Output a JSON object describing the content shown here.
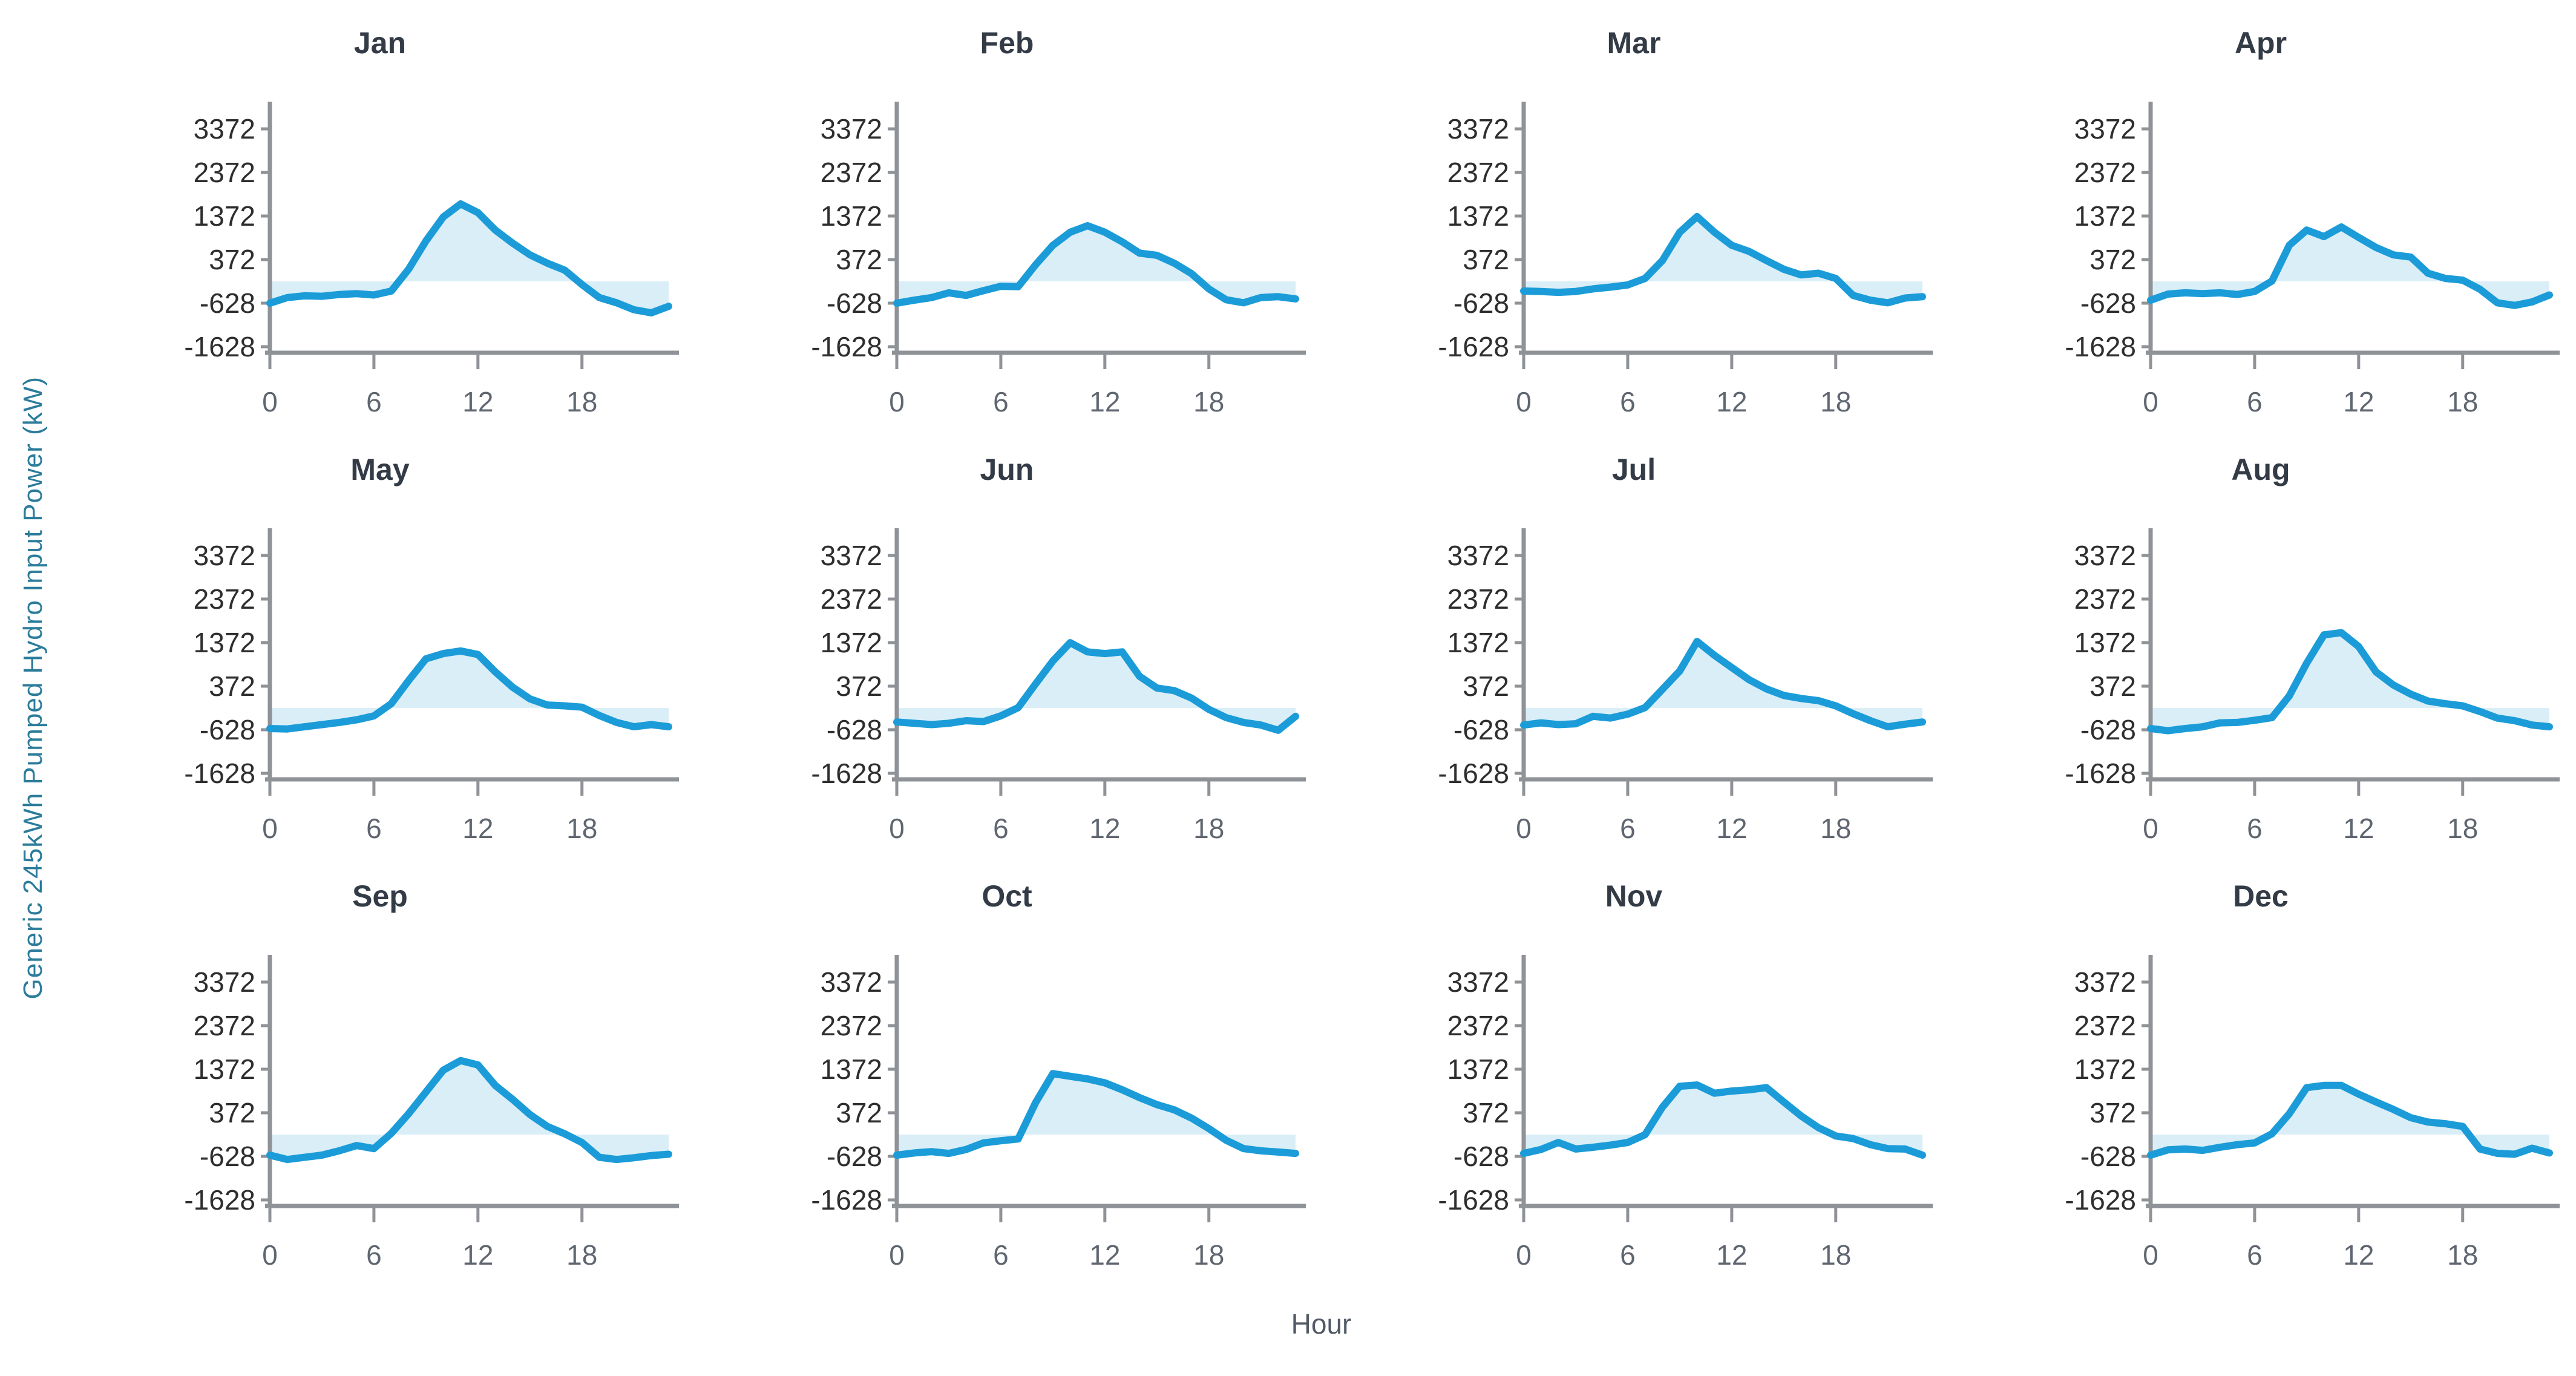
{
  "figure": {
    "ylabel": "Generic 245kWh Pumped Hydro Input Power (kW)",
    "xlabel": "Hour"
  },
  "colors": {
    "line": "#1b9cd8",
    "area_fill": "#daeef8",
    "axis": "#8f9397",
    "y_tick_text": "#2e2e2e",
    "x_tick_text": "#5f6670",
    "title_text": "#333b46",
    "ylabel_text": "#2b7c9b",
    "xlabel_text": "#525a66"
  },
  "chart_data": {
    "type": "line",
    "layout": "small-multiples-3x4",
    "title": "",
    "xlabel": "Hour",
    "ylabel": "Generic 245kWh Pumped Hydro Input Power (kW)",
    "x": [
      0,
      1,
      2,
      3,
      4,
      5,
      6,
      7,
      8,
      9,
      10,
      11,
      12,
      13,
      14,
      15,
      16,
      17,
      18,
      19,
      20,
      21,
      22,
      23
    ],
    "x_ticks": [
      0,
      6,
      12,
      18
    ],
    "y_ticks": [
      3372,
      2372,
      1372,
      372,
      -628,
      -1628
    ],
    "ylim": [
      -2150,
      3850
    ],
    "xlim": [
      0,
      23
    ],
    "baseline": -128,
    "grid": false,
    "legend": "none",
    "series": [
      {
        "name": "Jan",
        "values": [
          -628,
          -500,
          -460,
          -470,
          -430,
          -410,
          -440,
          -350,
          150,
          800,
          1350,
          1650,
          1450,
          1050,
          750,
          480,
          290,
          130,
          -200,
          -500,
          -620,
          -780,
          -850,
          -700
        ]
      },
      {
        "name": "Feb",
        "values": [
          -628,
          -560,
          -500,
          -390,
          -450,
          -340,
          -240,
          -250,
          250,
          700,
          1000,
          1150,
          1000,
          780,
          520,
          470,
          290,
          50,
          -300,
          -550,
          -620,
          -500,
          -480,
          -530
        ]
      },
      {
        "name": "Mar",
        "values": [
          -350,
          -360,
          -380,
          -360,
          -300,
          -260,
          -210,
          -60,
          350,
          1000,
          1360,
          1000,
          700,
          560,
          350,
          150,
          20,
          60,
          -60,
          -450,
          -560,
          -620,
          -510,
          -480
        ]
      },
      {
        "name": "Apr",
        "values": [
          -560,
          -420,
          -390,
          -410,
          -390,
          -430,
          -360,
          -120,
          700,
          1050,
          900,
          1120,
          880,
          650,
          480,
          430,
          60,
          -60,
          -100,
          -310,
          -620,
          -680,
          -600,
          -440
        ]
      },
      {
        "name": "May",
        "values": [
          -600,
          -610,
          -560,
          -510,
          -460,
          -400,
          -310,
          -30,
          500,
          1000,
          1120,
          1180,
          1100,
          700,
          350,
          80,
          -60,
          -80,
          -110,
          -300,
          -460,
          -560,
          -510,
          -560
        ]
      },
      {
        "name": "Jun",
        "values": [
          -450,
          -480,
          -510,
          -480,
          -420,
          -440,
          -310,
          -120,
          420,
          950,
          1370,
          1160,
          1120,
          1160,
          600,
          330,
          270,
          100,
          -160,
          -350,
          -460,
          -520,
          -640,
          -320
        ]
      },
      {
        "name": "Jul",
        "values": [
          -520,
          -470,
          -510,
          -490,
          -320,
          -360,
          -270,
          -120,
          300,
          720,
          1400,
          1080,
          800,
          520,
          310,
          160,
          90,
          40,
          -80,
          -260,
          -420,
          -560,
          -500,
          -450
        ]
      },
      {
        "name": "Aug",
        "values": [
          -600,
          -650,
          -600,
          -560,
          -470,
          -460,
          -410,
          -350,
          150,
          900,
          1550,
          1600,
          1280,
          700,
          400,
          190,
          30,
          -30,
          -80,
          -210,
          -360,
          -420,
          -520,
          -560
        ]
      },
      {
        "name": "Sep",
        "values": [
          -600,
          -700,
          -650,
          -600,
          -500,
          -380,
          -450,
          -100,
          350,
          850,
          1350,
          1570,
          1470,
          1000,
          680,
          330,
          60,
          -110,
          -310,
          -650,
          -700,
          -660,
          -610,
          -580
        ]
      },
      {
        "name": "Oct",
        "values": [
          -600,
          -550,
          -520,
          -560,
          -470,
          -320,
          -270,
          -230,
          600,
          1270,
          1210,
          1150,
          1060,
          900,
          720,
          560,
          440,
          250,
          10,
          -260,
          -450,
          -500,
          -530,
          -560
        ]
      },
      {
        "name": "Nov",
        "values": [
          -560,
          -470,
          -310,
          -460,
          -420,
          -370,
          -310,
          -130,
          500,
          980,
          1010,
          820,
          870,
          900,
          950,
          620,
          300,
          30,
          -160,
          -220,
          -360,
          -450,
          -460,
          -600
        ]
      },
      {
        "name": "Dec",
        "values": [
          -600,
          -480,
          -460,
          -490,
          -420,
          -360,
          -320,
          -110,
          350,
          950,
          1000,
          1000,
          800,
          620,
          450,
          260,
          160,
          120,
          60,
          -460,
          -560,
          -580,
          -440,
          -550
        ]
      }
    ]
  }
}
